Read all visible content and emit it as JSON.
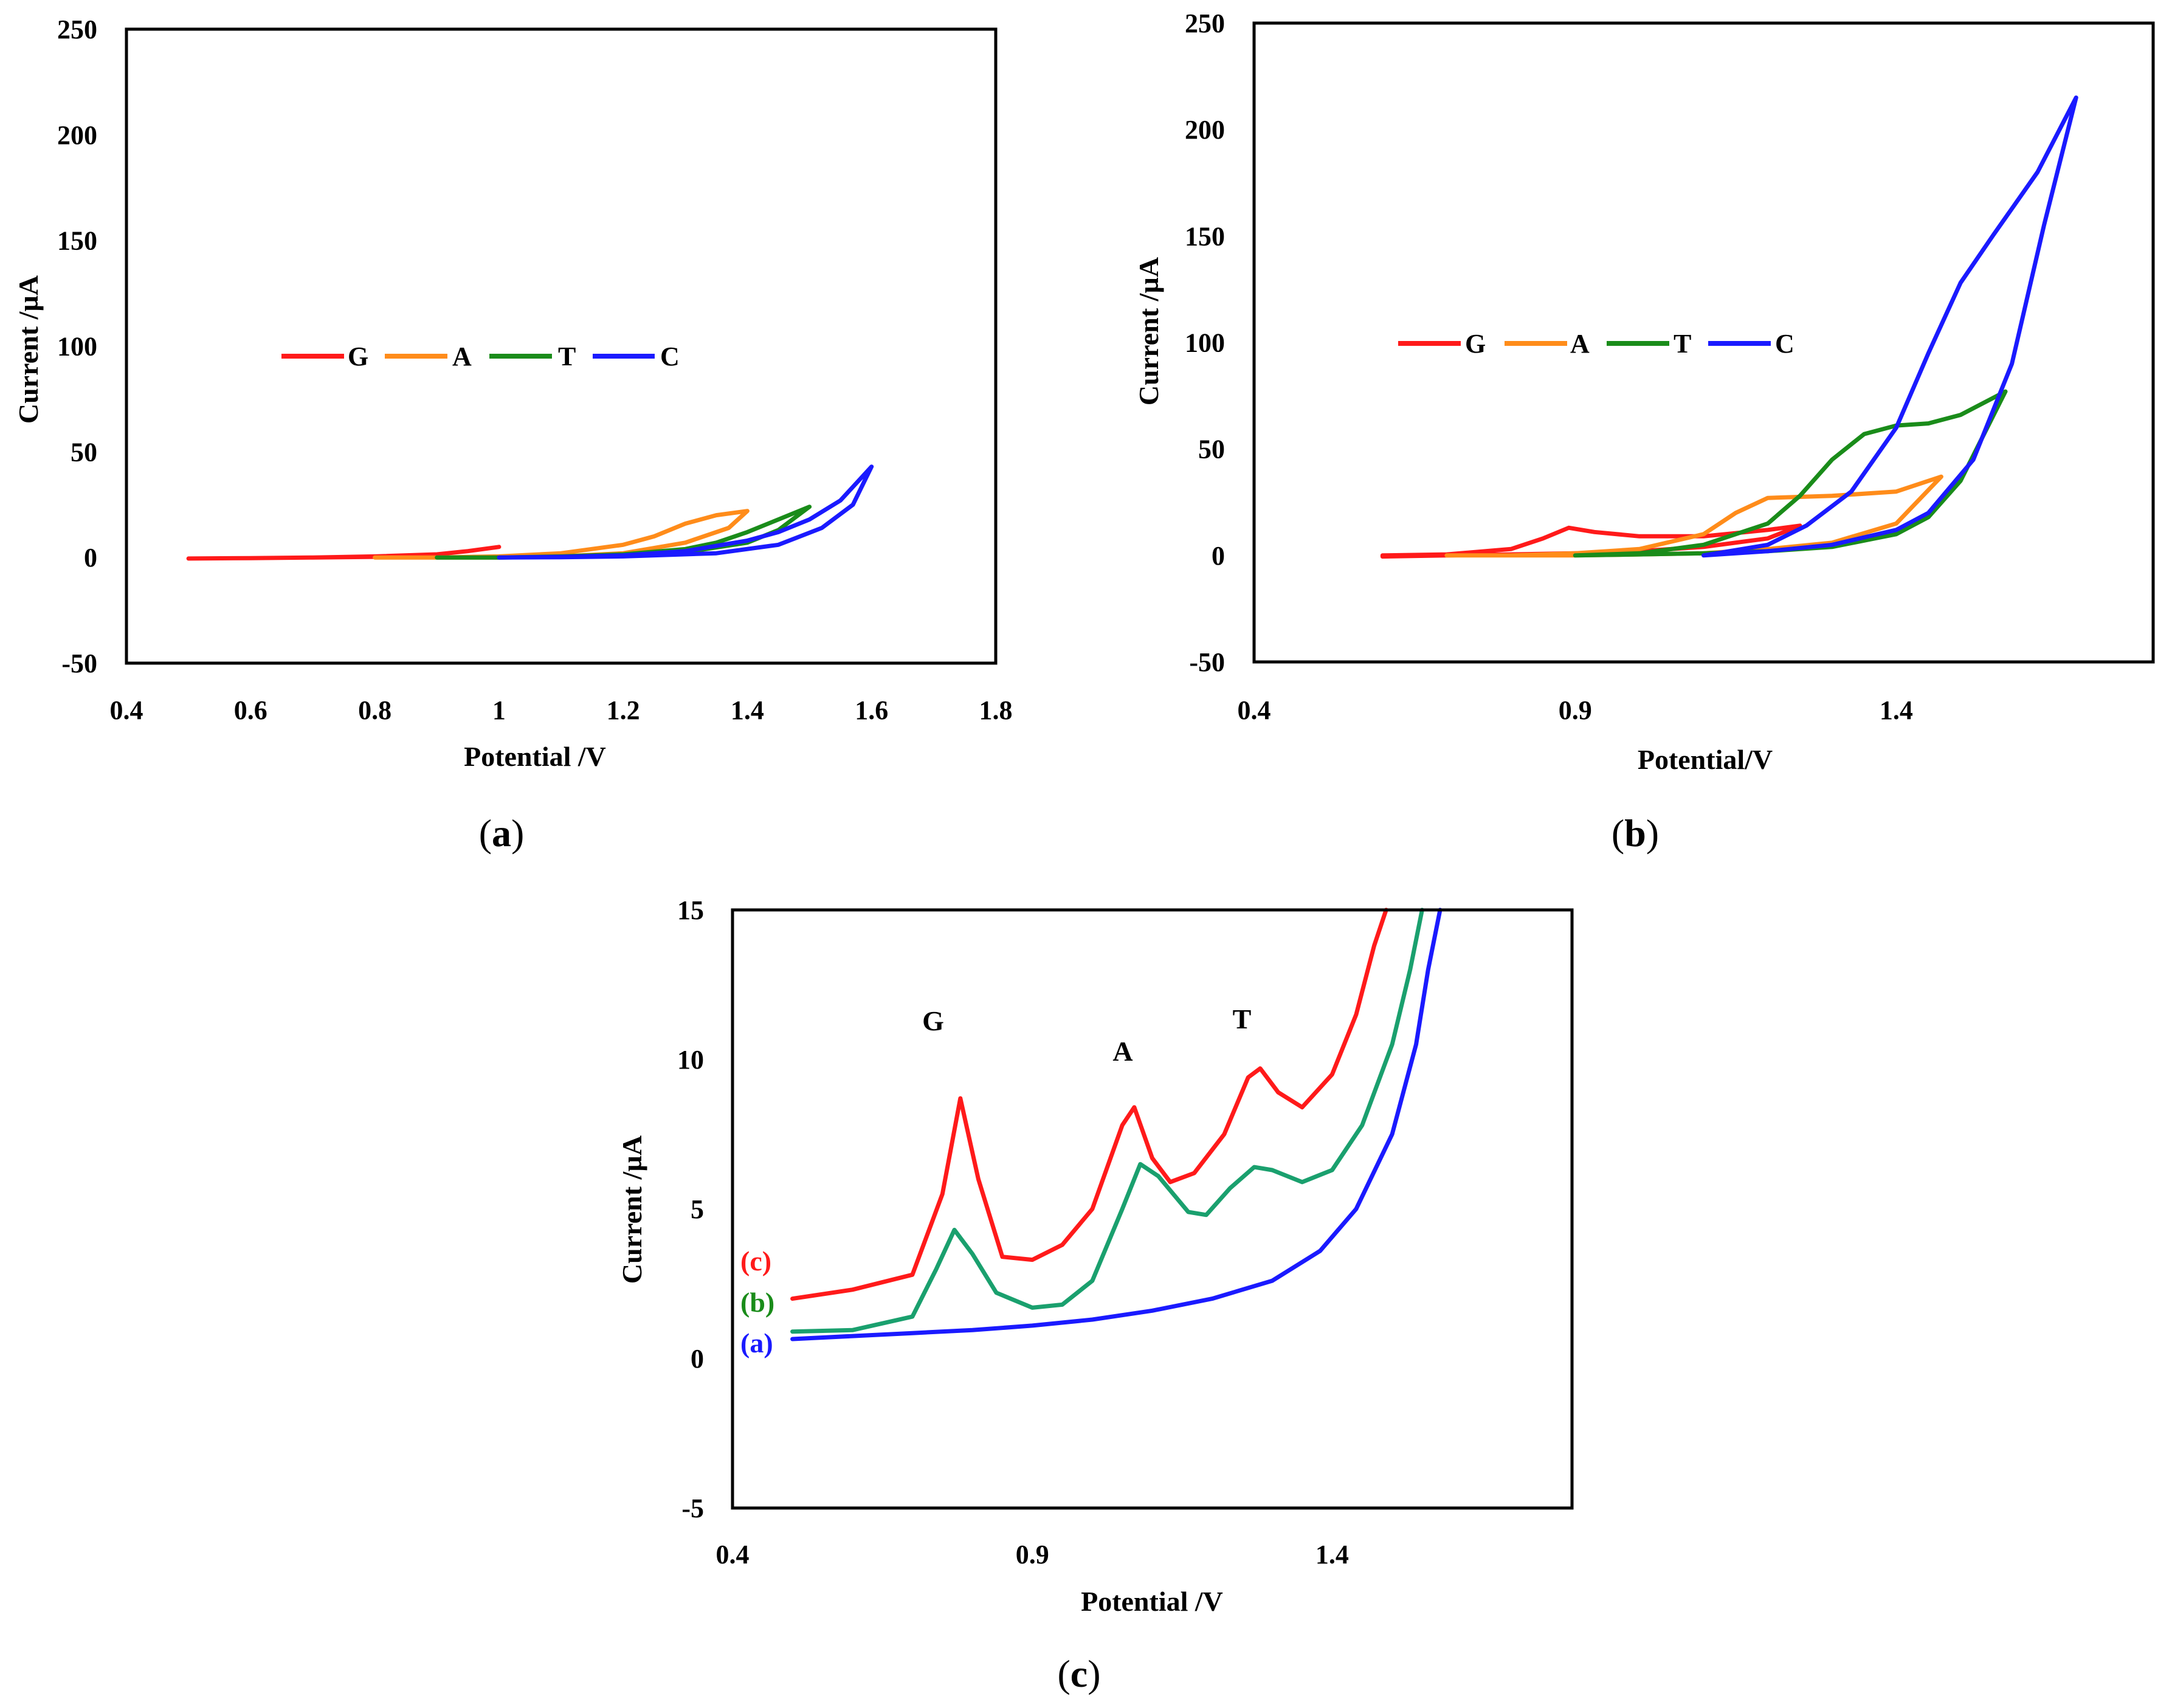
{
  "colors": {
    "red": "#ff1a1a",
    "orange": "#ff8c1a",
    "green": "#1a8c1a",
    "teal": "#1aa06e",
    "blue": "#1a1aff"
  },
  "chart_data": [
    {
      "id": "a",
      "type": "line",
      "caption": {
        "open": "(",
        "letter": "a",
        "close": ")"
      },
      "xlabel": "Potential  /V",
      "ylabel": "Current /µA",
      "xlim": [
        0.4,
        1.8
      ],
      "ylim": [
        -50,
        250
      ],
      "xticks": [
        "0.4",
        "0.6",
        "0.8",
        "1",
        "1.2",
        "1.4",
        "1.6",
        "1.8"
      ],
      "yticks": [
        "250",
        "200",
        "150",
        "100",
        "50",
        "0",
        "-50"
      ],
      "legend": [
        "G",
        "A",
        "T",
        "C"
      ],
      "series": [
        {
          "name": "G",
          "color": "red",
          "points": [
            [
              0.5,
              -0.5
            ],
            [
              0.6,
              -0.3
            ],
            [
              0.7,
              0
            ],
            [
              0.8,
              0.3
            ],
            [
              0.9,
              1.5
            ],
            [
              0.95,
              3
            ],
            [
              1.0,
              5
            ],
            [
              0.95,
              3
            ],
            [
              0.9,
              1.5
            ],
            [
              0.8,
              0.5
            ],
            [
              0.7,
              0
            ],
            [
              0.6,
              -0.3
            ],
            [
              0.5,
              -0.5
            ]
          ]
        },
        {
          "name": "A",
          "color": "orange",
          "points": [
            [
              0.8,
              0
            ],
            [
              0.9,
              0
            ],
            [
              1.0,
              0.5
            ],
            [
              1.1,
              2
            ],
            [
              1.2,
              6
            ],
            [
              1.25,
              10
            ],
            [
              1.3,
              16
            ],
            [
              1.35,
              20
            ],
            [
              1.4,
              22
            ],
            [
              1.37,
              14
            ],
            [
              1.3,
              7
            ],
            [
              1.2,
              2
            ],
            [
              1.1,
              0.5
            ],
            [
              1.0,
              0
            ],
            [
              0.9,
              0
            ],
            [
              0.8,
              0
            ]
          ]
        },
        {
          "name": "T",
          "color": "green",
          "points": [
            [
              0.9,
              0
            ],
            [
              1.0,
              0
            ],
            [
              1.1,
              0.5
            ],
            [
              1.2,
              1.5
            ],
            [
              1.3,
              4
            ],
            [
              1.35,
              7
            ],
            [
              1.4,
              12
            ],
            [
              1.45,
              18
            ],
            [
              1.5,
              24
            ],
            [
              1.45,
              13
            ],
            [
              1.4,
              7
            ],
            [
              1.3,
              2.5
            ],
            [
              1.2,
              1
            ],
            [
              1.1,
              0.3
            ],
            [
              1.0,
              0
            ],
            [
              0.9,
              0
            ]
          ]
        },
        {
          "name": "C",
          "color": "blue",
          "points": [
            [
              1.0,
              0
            ],
            [
              1.1,
              0.3
            ],
            [
              1.2,
              1
            ],
            [
              1.3,
              3
            ],
            [
              1.4,
              8
            ],
            [
              1.45,
              12
            ],
            [
              1.5,
              18
            ],
            [
              1.55,
              27
            ],
            [
              1.6,
              43
            ],
            [
              1.57,
              25
            ],
            [
              1.52,
              14
            ],
            [
              1.45,
              6
            ],
            [
              1.35,
              2
            ],
            [
              1.2,
              0.5
            ],
            [
              1.1,
              0.1
            ],
            [
              1.0,
              0
            ]
          ]
        }
      ]
    },
    {
      "id": "b",
      "type": "line",
      "caption": {
        "open": "(",
        "letter": "b",
        "close": ")"
      },
      "xlabel": "Potential/V",
      "ylabel": "Current /µA",
      "xlim": [
        0.4,
        1.8
      ],
      "ylim": [
        -50,
        250
      ],
      "xticks": [
        "0.4",
        "0.9",
        "1.4"
      ],
      "ytick_values": [
        250,
        200,
        150,
        100,
        50,
        0,
        -50
      ],
      "xtick_values": [
        0.4,
        0.9,
        1.4
      ],
      "yticks": [
        "250",
        "200",
        "150",
        "100",
        "50",
        "0",
        "-50"
      ],
      "legend": [
        "G",
        "A",
        "T",
        "C"
      ],
      "series": [
        {
          "name": "G",
          "color": "red",
          "points": [
            [
              0.6,
              0
            ],
            [
              0.7,
              0.5
            ],
            [
              0.8,
              3
            ],
            [
              0.85,
              8
            ],
            [
              0.89,
              13
            ],
            [
              0.93,
              11
            ],
            [
              1.0,
              9
            ],
            [
              1.1,
              9
            ],
            [
              1.2,
              12
            ],
            [
              1.25,
              14
            ],
            [
              1.2,
              8
            ],
            [
              1.1,
              4
            ],
            [
              1.0,
              2
            ],
            [
              0.9,
              1
            ],
            [
              0.8,
              0.5
            ],
            [
              0.7,
              0
            ],
            [
              0.6,
              -0.5
            ]
          ]
        },
        {
          "name": "A",
          "color": "orange",
          "points": [
            [
              0.7,
              0
            ],
            [
              0.8,
              0
            ],
            [
              0.9,
              1
            ],
            [
              1.0,
              3
            ],
            [
              1.1,
              10
            ],
            [
              1.15,
              20
            ],
            [
              1.2,
              27
            ],
            [
              1.3,
              28
            ],
            [
              1.4,
              30
            ],
            [
              1.47,
              37
            ],
            [
              1.4,
              15
            ],
            [
              1.3,
              6
            ],
            [
              1.2,
              3
            ],
            [
              1.1,
              1
            ],
            [
              1.0,
              0.5
            ],
            [
              0.9,
              0
            ],
            [
              0.8,
              0
            ],
            [
              0.7,
              0
            ]
          ]
        },
        {
          "name": "T",
          "color": "green",
          "points": [
            [
              0.9,
              0
            ],
            [
              1.0,
              1
            ],
            [
              1.1,
              5
            ],
            [
              1.2,
              15
            ],
            [
              1.25,
              28
            ],
            [
              1.3,
              45
            ],
            [
              1.35,
              57
            ],
            [
              1.4,
              61
            ],
            [
              1.45,
              62
            ],
            [
              1.5,
              66
            ],
            [
              1.57,
              77
            ],
            [
              1.5,
              35
            ],
            [
              1.45,
              18
            ],
            [
              1.4,
              10
            ],
            [
              1.3,
              4
            ],
            [
              1.2,
              2
            ],
            [
              1.1,
              1
            ],
            [
              1.0,
              0.5
            ],
            [
              0.9,
              0
            ]
          ]
        },
        {
          "name": "C",
          "color": "blue",
          "points": [
            [
              1.1,
              0
            ],
            [
              1.2,
              5
            ],
            [
              1.26,
              14
            ],
            [
              1.33,
              30
            ],
            [
              1.4,
              60
            ],
            [
              1.45,
              95
            ],
            [
              1.5,
              128
            ],
            [
              1.55,
              150
            ],
            [
              1.62,
              180
            ],
            [
              1.68,
              215
            ],
            [
              1.63,
              155
            ],
            [
              1.58,
              90
            ],
            [
              1.52,
              45
            ],
            [
              1.45,
              20
            ],
            [
              1.4,
              12
            ],
            [
              1.3,
              5
            ],
            [
              1.2,
              2
            ],
            [
              1.1,
              0
            ]
          ]
        }
      ]
    },
    {
      "id": "c",
      "type": "line",
      "caption": {
        "open": "(",
        "letter": "c",
        "close": ")"
      },
      "xlabel": "Potential /V",
      "ylabel": "Current  /µA",
      "xlim": [
        0.4,
        1.8
      ],
      "ylim": [
        -5,
        15
      ],
      "xticks": [
        "0.4",
        "0.9",
        "1.4"
      ],
      "yticks": [
        "15",
        "10",
        "5",
        "0",
        "-5"
      ],
      "annotations": [
        "G",
        "A",
        "T"
      ],
      "curve_labels": [
        "(c)",
        "(b)",
        "(a)"
      ],
      "series": [
        {
          "name": "(c)",
          "color": "red",
          "points": [
            [
              0.5,
              2.0
            ],
            [
              0.6,
              2.3
            ],
            [
              0.7,
              2.8
            ],
            [
              0.75,
              5.5
            ],
            [
              0.78,
              8.7
            ],
            [
              0.81,
              6.0
            ],
            [
              0.85,
              3.4
            ],
            [
              0.9,
              3.3
            ],
            [
              0.95,
              3.8
            ],
            [
              1.0,
              5.0
            ],
            [
              1.05,
              7.8
            ],
            [
              1.07,
              8.4
            ],
            [
              1.1,
              6.7
            ],
            [
              1.13,
              5.9
            ],
            [
              1.17,
              6.2
            ],
            [
              1.22,
              7.5
            ],
            [
              1.26,
              9.4
            ],
            [
              1.28,
              9.7
            ],
            [
              1.31,
              8.9
            ],
            [
              1.35,
              8.4
            ],
            [
              1.4,
              9.5
            ],
            [
              1.44,
              11.5
            ],
            [
              1.47,
              13.8
            ],
            [
              1.49,
              15
            ]
          ]
        },
        {
          "name": "(b)",
          "color": "teal",
          "points": [
            [
              0.5,
              0.9
            ],
            [
              0.6,
              0.95
            ],
            [
              0.7,
              1.4
            ],
            [
              0.74,
              3.0
            ],
            [
              0.77,
              4.3
            ],
            [
              0.8,
              3.5
            ],
            [
              0.84,
              2.2
            ],
            [
              0.9,
              1.7
            ],
            [
              0.95,
              1.8
            ],
            [
              1.0,
              2.6
            ],
            [
              1.05,
              5.0
            ],
            [
              1.08,
              6.5
            ],
            [
              1.11,
              6.1
            ],
            [
              1.16,
              4.9
            ],
            [
              1.19,
              4.8
            ],
            [
              1.23,
              5.7
            ],
            [
              1.27,
              6.4
            ],
            [
              1.3,
              6.3
            ],
            [
              1.35,
              5.9
            ],
            [
              1.4,
              6.3
            ],
            [
              1.45,
              7.8
            ],
            [
              1.5,
              10.5
            ],
            [
              1.53,
              13
            ],
            [
              1.55,
              15
            ]
          ]
        },
        {
          "name": "(a)",
          "color": "blue",
          "points": [
            [
              0.5,
              0.65
            ],
            [
              0.6,
              0.75
            ],
            [
              0.7,
              0.85
            ],
            [
              0.8,
              0.95
            ],
            [
              0.9,
              1.1
            ],
            [
              1.0,
              1.3
            ],
            [
              1.1,
              1.6
            ],
            [
              1.2,
              2.0
            ],
            [
              1.3,
              2.6
            ],
            [
              1.38,
              3.6
            ],
            [
              1.44,
              5.0
            ],
            [
              1.5,
              7.5
            ],
            [
              1.54,
              10.5
            ],
            [
              1.56,
              13
            ],
            [
              1.58,
              15
            ]
          ]
        }
      ]
    }
  ]
}
